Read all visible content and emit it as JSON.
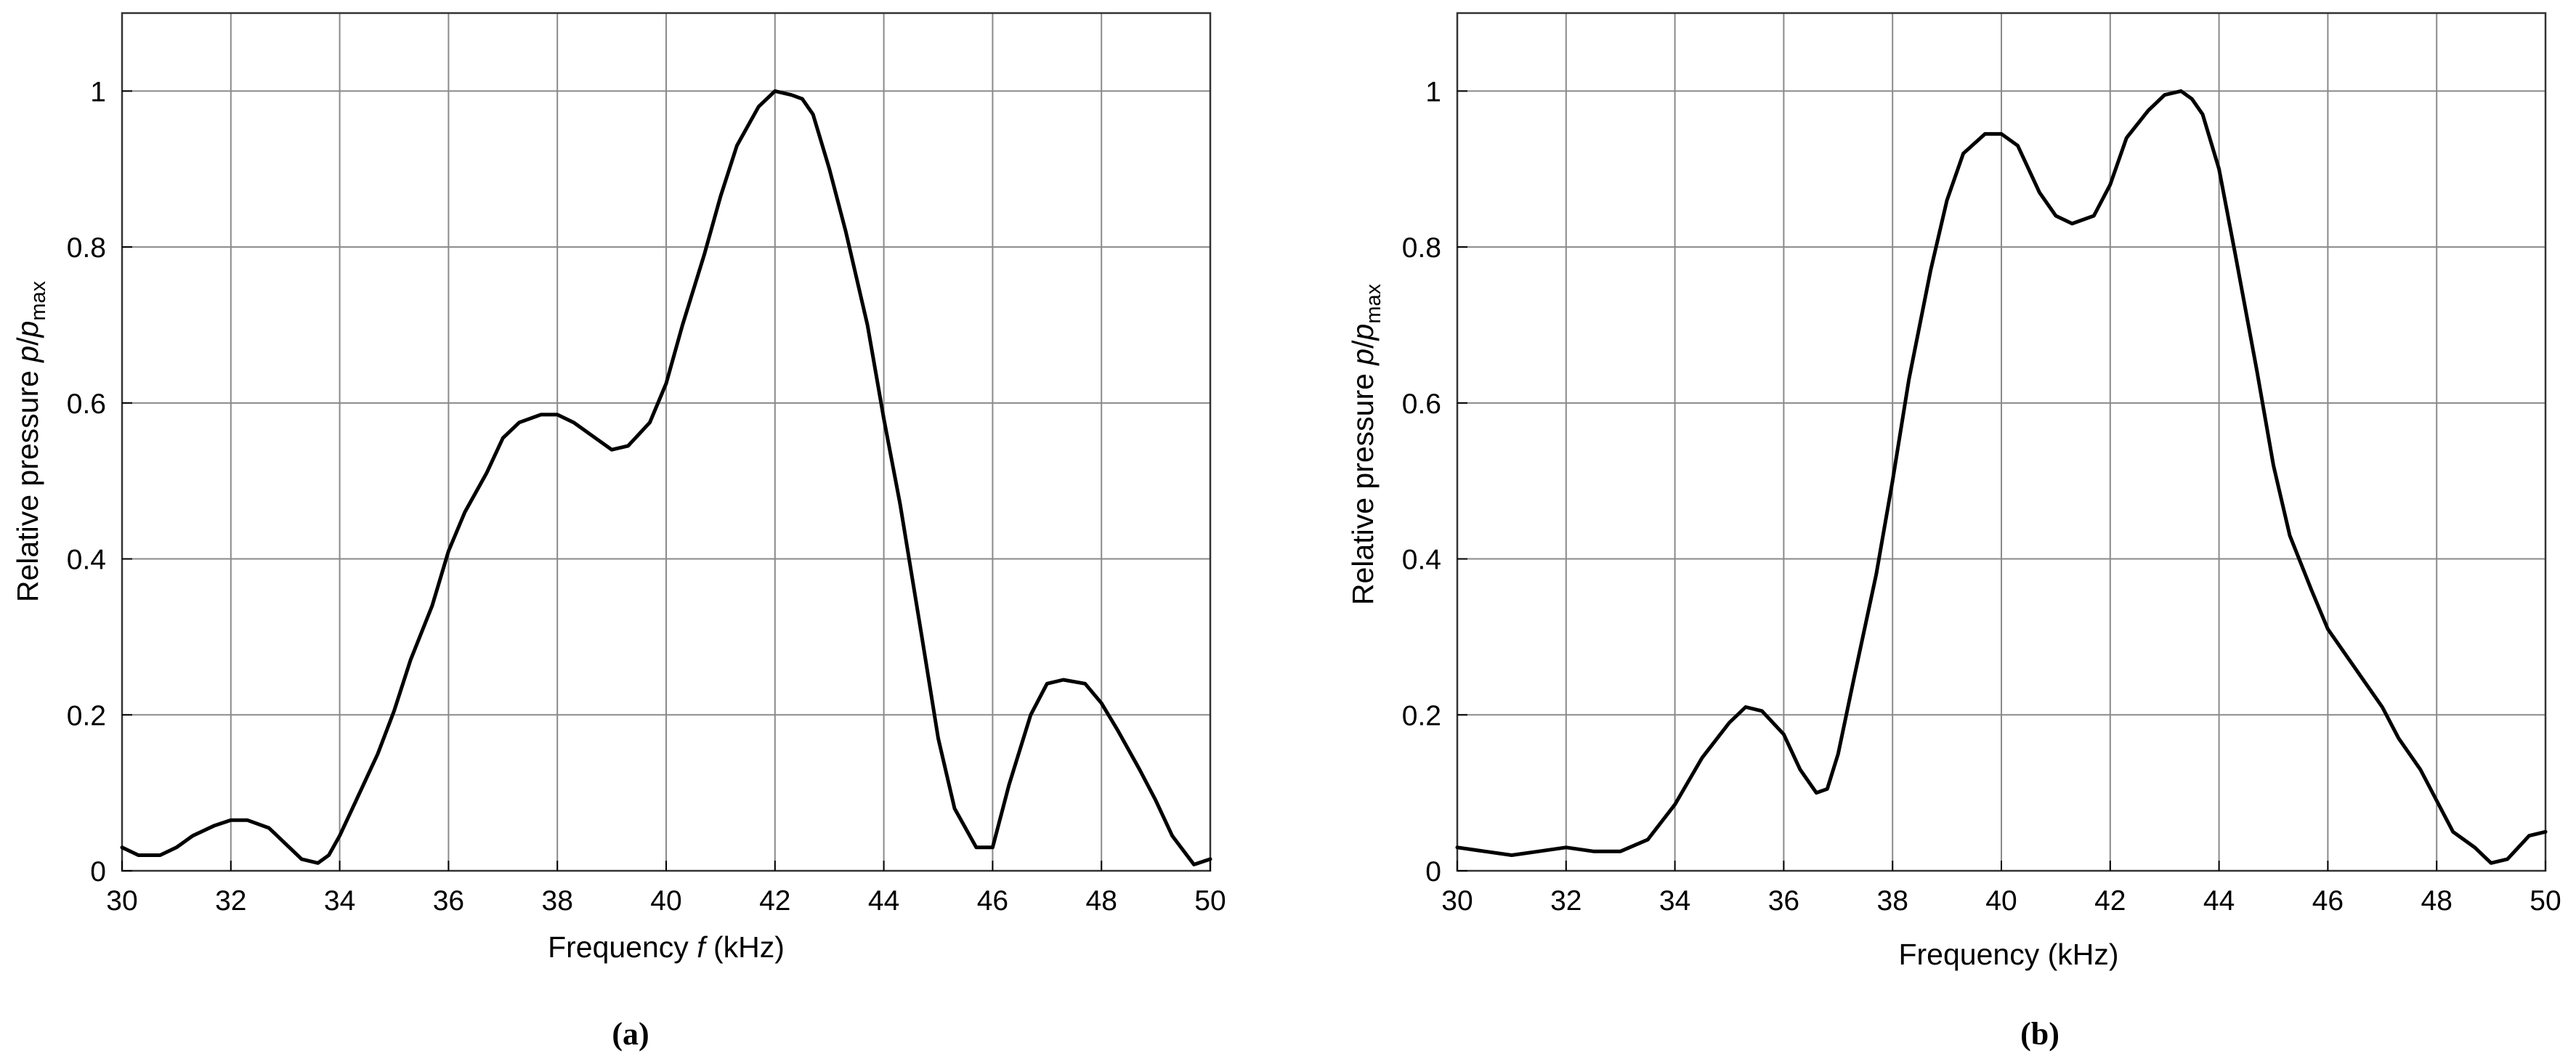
{
  "chart_data": [
    {
      "type": "line",
      "panel_label": "(a)",
      "xlabel": {
        "before": "Frequency ",
        "italic": "f",
        "after": " (kHz)"
      },
      "ylabel": {
        "before": "Relative pressure ",
        "p": "p",
        "slash": "/",
        "p2": "p",
        "subscript": "max"
      },
      "xlim": [
        30,
        50
      ],
      "ylim": [
        0,
        1.1
      ],
      "grid": true,
      "line_color": "#000000",
      "xticks": [
        30,
        32,
        34,
        36,
        38,
        40,
        42,
        44,
        46,
        48,
        50
      ],
      "yticks": [
        0,
        0.2,
        0.4,
        0.6,
        0.8,
        1
      ],
      "ytick_labels": [
        "0",
        "0.2",
        "0.4",
        "0.6",
        "0.8",
        "1"
      ],
      "series": [
        {
          "x": [
            30.0,
            30.3,
            30.7,
            31.0,
            31.3,
            31.7,
            32.0,
            32.3,
            32.7,
            33.0,
            33.3,
            33.6,
            33.8,
            34.0,
            34.3,
            34.7,
            35.0,
            35.3,
            35.7,
            36.0,
            36.3,
            36.7,
            37.0,
            37.3,
            37.7,
            38.0,
            38.3,
            38.7,
            39.0,
            39.3,
            39.7,
            40.0,
            40.3,
            40.7,
            41.0,
            41.3,
            41.7,
            42.0,
            42.3,
            42.5,
            42.7,
            43.0,
            43.3,
            43.7,
            44.0,
            44.3,
            44.7,
            45.0,
            45.3,
            45.7,
            46.0,
            46.3,
            46.7,
            47.0,
            47.3,
            47.7,
            48.0,
            48.3,
            48.7,
            49.0,
            49.3,
            49.7,
            50.0
          ],
          "y": [
            0.03,
            0.02,
            0.02,
            0.03,
            0.045,
            0.058,
            0.065,
            0.065,
            0.055,
            0.035,
            0.015,
            0.01,
            0.02,
            0.045,
            0.09,
            0.15,
            0.205,
            0.27,
            0.34,
            0.41,
            0.46,
            0.51,
            0.555,
            0.575,
            0.585,
            0.585,
            0.575,
            0.555,
            0.54,
            0.545,
            0.575,
            0.625,
            0.7,
            0.79,
            0.865,
            0.93,
            0.98,
            1.0,
            0.995,
            0.99,
            0.97,
            0.9,
            0.82,
            0.7,
            0.58,
            0.47,
            0.3,
            0.17,
            0.08,
            0.03,
            0.03,
            0.11,
            0.2,
            0.24,
            0.245,
            0.24,
            0.215,
            0.18,
            0.13,
            0.09,
            0.045,
            0.008,
            0.015
          ]
        }
      ]
    },
    {
      "type": "line",
      "panel_label": "(b)",
      "xlabel": {
        "before": "Frequency (kHz)",
        "italic": "",
        "after": ""
      },
      "ylabel": {
        "before": "Relative pressure ",
        "p": "p",
        "slash": "/",
        "p2": "p",
        "subscript": "max"
      },
      "xlim": [
        30,
        50
      ],
      "ylim": [
        0,
        1.1
      ],
      "grid": true,
      "line_color": "#000000",
      "xticks": [
        30,
        32,
        34,
        36,
        38,
        40,
        42,
        44,
        46,
        48,
        50
      ],
      "yticks": [
        0,
        0.2,
        0.4,
        0.6,
        0.8,
        1
      ],
      "ytick_labels": [
        "0",
        "0.2",
        "0.4",
        "0.6",
        "0.8",
        "1"
      ],
      "series": [
        {
          "x": [
            30.0,
            30.5,
            31.0,
            31.5,
            32.0,
            32.5,
            33.0,
            33.5,
            34.0,
            34.5,
            35.0,
            35.3,
            35.6,
            36.0,
            36.3,
            36.6,
            36.8,
            37.0,
            37.3,
            37.7,
            38.0,
            38.3,
            38.7,
            39.0,
            39.3,
            39.7,
            40.0,
            40.3,
            40.7,
            41.0,
            41.3,
            41.7,
            42.0,
            42.3,
            42.7,
            43.0,
            43.3,
            43.5,
            43.7,
            44.0,
            44.3,
            44.7,
            45.0,
            45.3,
            45.7,
            46.0,
            46.3,
            46.7,
            47.0,
            47.3,
            47.7,
            48.0,
            48.3,
            48.7,
            49.0,
            49.3,
            49.5,
            49.7,
            50.0
          ],
          "y": [
            0.03,
            0.025,
            0.02,
            0.025,
            0.03,
            0.025,
            0.025,
            0.04,
            0.085,
            0.145,
            0.19,
            0.21,
            0.205,
            0.175,
            0.13,
            0.1,
            0.105,
            0.15,
            0.25,
            0.38,
            0.5,
            0.63,
            0.77,
            0.86,
            0.92,
            0.945,
            0.945,
            0.93,
            0.87,
            0.84,
            0.83,
            0.84,
            0.88,
            0.94,
            0.975,
            0.995,
            1.0,
            0.99,
            0.97,
            0.9,
            0.79,
            0.64,
            0.52,
            0.43,
            0.36,
            0.31,
            0.28,
            0.24,
            0.21,
            0.17,
            0.13,
            0.09,
            0.05,
            0.03,
            0.01,
            0.015,
            0.03,
            0.045,
            0.05
          ]
        }
      ]
    }
  ]
}
